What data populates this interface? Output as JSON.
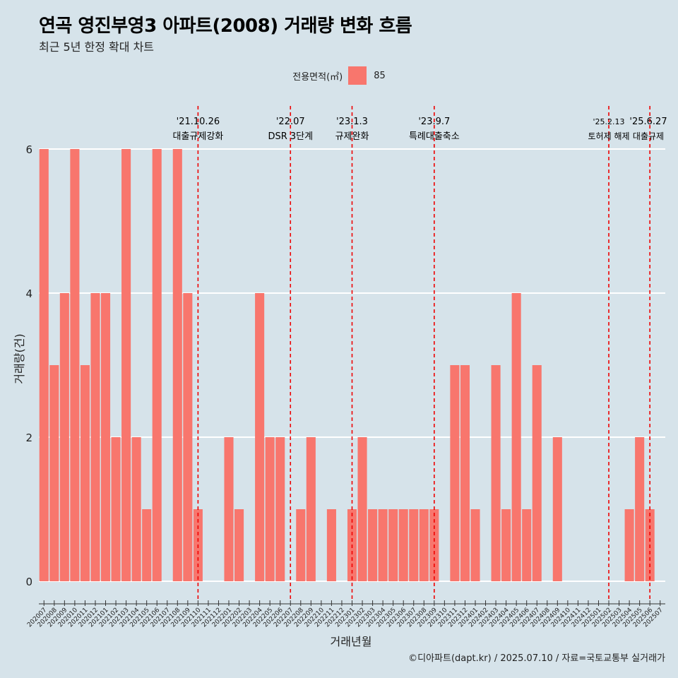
{
  "title": "연곡 영진부영3 아파트(2008) 거래량 변화 흐름",
  "subtitle": "최근 5년 한정 확대 차트",
  "caption": "©디아파트(dapt.kr) / 2025.07.10 / 자료=국토교통부 실거래가",
  "colors": {
    "bar": "#f8766d",
    "event_line": "#ee0000",
    "background": "#d6e3ea",
    "grid": "#ffffff"
  },
  "chart_data": {
    "type": "bar",
    "xlabel": "거래년월",
    "ylabel": "거래량(건)",
    "ylim": [
      0,
      6
    ],
    "yticks": [
      0,
      2,
      4,
      6
    ],
    "legend": {
      "title": "전용면적(㎡)",
      "position": "top"
    },
    "categories": [
      "202007",
      "202008",
      "202009",
      "202010",
      "202011",
      "202012",
      "202101",
      "202102",
      "202103",
      "202104",
      "202105",
      "202106",
      "202107",
      "202108",
      "202109",
      "202110",
      "202111",
      "202112",
      "202201",
      "202202",
      "202203",
      "202204",
      "202205",
      "202206",
      "202207",
      "202208",
      "202209",
      "202210",
      "202211",
      "202212",
      "202301",
      "202302",
      "202303",
      "202304",
      "202305",
      "202306",
      "202307",
      "202308",
      "202309",
      "202310",
      "202311",
      "202312",
      "202401",
      "202402",
      "202403",
      "202404",
      "202405",
      "202406",
      "202407",
      "202408",
      "202409",
      "202410",
      "202411",
      "202412",
      "202501",
      "202502",
      "202503",
      "202504",
      "202505",
      "202506",
      "202507"
    ],
    "series": [
      {
        "name": "85",
        "values": [
          6,
          3,
          4,
          6,
          3,
          4,
          4,
          2,
          6,
          2,
          1,
          6,
          0,
          6,
          4,
          1,
          0,
          0,
          2,
          1,
          0,
          4,
          2,
          2,
          0,
          1,
          2,
          0,
          1,
          0,
          1,
          2,
          1,
          1,
          1,
          1,
          1,
          1,
          1,
          0,
          3,
          3,
          1,
          0,
          3,
          1,
          4,
          1,
          3,
          0,
          2,
          0,
          0,
          0,
          0,
          0,
          0,
          1,
          2,
          1,
          0
        ]
      }
    ],
    "events": [
      {
        "date": "'21.10.26",
        "label": "대출규제강화",
        "month": "202110",
        "pos": 0.0
      },
      {
        "date": "'22.07",
        "label": "DSR 3단계",
        "month": "202207",
        "pos": 0.0
      },
      {
        "date": "'23.1.3",
        "label": "규제완화",
        "month": "202301",
        "pos": 0.0
      },
      {
        "date": "'23.9.7",
        "label": "특례대출축소",
        "month": "202309",
        "pos": 0.0
      },
      {
        "date": "'25.2.13",
        "label": "토허제 해제",
        "month": "202502",
        "pos": 0.0
      },
      {
        "date": "'25.6.27",
        "label": "대출규제",
        "month": "202506",
        "pos": 0.0
      }
    ]
  }
}
